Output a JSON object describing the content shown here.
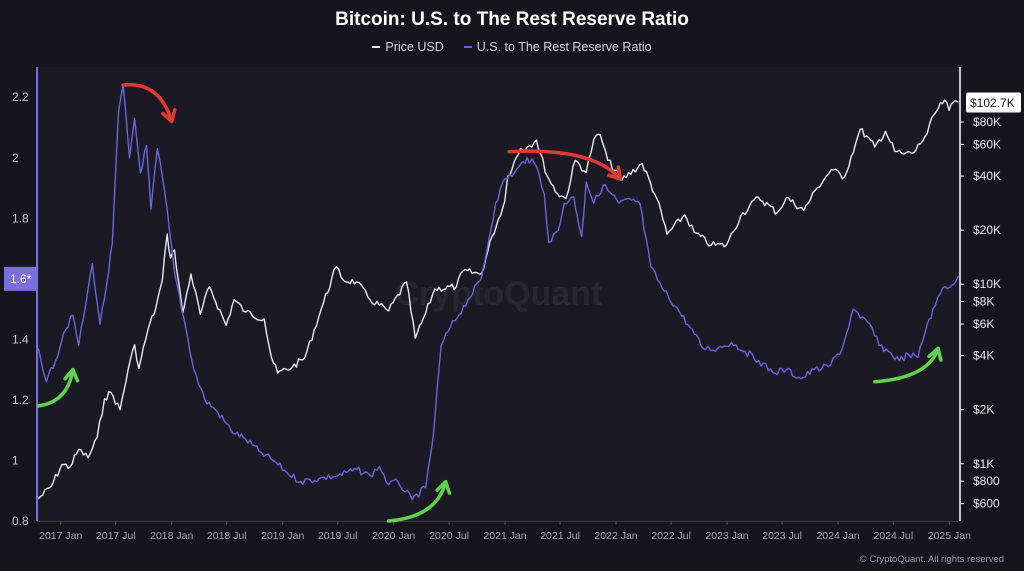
{
  "chart_data": {
    "type": "line",
    "title": "Bitcoin: U.S. to The Rest Reserve Ratio",
    "watermark": "CryptoQuant",
    "copyright": "© CryptoQuant. All rights reserved",
    "x_tick_labels": [
      "2017 Jan",
      "2017 Jul",
      "2018 Jan",
      "2018 Jul",
      "2019 Jan",
      "2019 Jul",
      "2020 Jan",
      "2020 Jul",
      "2021 Jan",
      "2021 Jul",
      "2022 Jan",
      "2022 Jul",
      "2023 Jan",
      "2023 Jul",
      "2024 Jan",
      "2024 Jul",
      "2025 Jan"
    ],
    "x_range": [
      "2016-10-15",
      "2025-02-05"
    ],
    "left_axis": {
      "ticks": [
        "0.8",
        "1",
        "1.2",
        "1.4",
        "1.6",
        "1.8",
        "2",
        "2.2"
      ],
      "range": [
        0.8,
        2.28
      ],
      "marker_label": "1.6*",
      "marker_value": 1.6,
      "color": "#7b6fe0"
    },
    "right_axis": {
      "scale": "log",
      "ticks": [
        {
          "label": "$600",
          "value": 600
        },
        {
          "label": "$800",
          "value": 800
        },
        {
          "label": "$1K",
          "value": 1000
        },
        {
          "label": "$2K",
          "value": 2000
        },
        {
          "label": "$4K",
          "value": 4000
        },
        {
          "label": "$6K",
          "value": 6000
        },
        {
          "label": "$8K",
          "value": 8000
        },
        {
          "label": "$10K",
          "value": 10000
        },
        {
          "label": "$20K",
          "value": 20000
        },
        {
          "label": "$40K",
          "value": 40000
        },
        {
          "label": "$60K",
          "value": 60000
        },
        {
          "label": "$80K",
          "value": 80000
        }
      ],
      "range": [
        480,
        150000
      ],
      "last_price_label": "$102.7K",
      "last_price_value": 102700,
      "color": "#ffffff"
    },
    "series": [
      {
        "name": "Price USD",
        "axis": "right",
        "color": "#e9e9ee",
        "points": [
          [
            "2016-10-20",
            640
          ],
          [
            "2016-12-01",
            750
          ],
          [
            "2017-01-05",
            990
          ],
          [
            "2017-02-01",
            960
          ],
          [
            "2017-03-01",
            1200
          ],
          [
            "2017-04-01",
            1080
          ],
          [
            "2017-05-01",
            1400
          ],
          [
            "2017-05-25",
            2300
          ],
          [
            "2017-06-15",
            2500
          ],
          [
            "2017-07-15",
            2000
          ],
          [
            "2017-08-10",
            3300
          ],
          [
            "2017-09-01",
            4600
          ],
          [
            "2017-09-15",
            3400
          ],
          [
            "2017-10-15",
            5600
          ],
          [
            "2017-11-10",
            7400
          ],
          [
            "2017-12-01",
            10500
          ],
          [
            "2017-12-17",
            19000
          ],
          [
            "2017-12-28",
            14000
          ],
          [
            "2018-01-10",
            15500
          ],
          [
            "2018-02-06",
            6900
          ],
          [
            "2018-03-05",
            11400
          ],
          [
            "2018-04-05",
            6800
          ],
          [
            "2018-05-05",
            9700
          ],
          [
            "2018-06-29",
            5900
          ],
          [
            "2018-07-25",
            8200
          ],
          [
            "2018-09-01",
            7000
          ],
          [
            "2018-11-01",
            6400
          ],
          [
            "2018-11-25",
            3900
          ],
          [
            "2018-12-15",
            3200
          ],
          [
            "2019-02-01",
            3450
          ],
          [
            "2019-03-15",
            3900
          ],
          [
            "2019-05-15",
            7900
          ],
          [
            "2019-06-26",
            12500
          ],
          [
            "2019-07-20",
            10500
          ],
          [
            "2019-09-01",
            10300
          ],
          [
            "2019-10-15",
            8200
          ],
          [
            "2019-12-15",
            7100
          ],
          [
            "2020-02-12",
            10300
          ],
          [
            "2020-03-12",
            5000
          ],
          [
            "2020-04-15",
            6900
          ],
          [
            "2020-05-15",
            9400
          ],
          [
            "2020-07-25",
            9700
          ],
          [
            "2020-08-15",
            11800
          ],
          [
            "2020-10-15",
            11400
          ],
          [
            "2020-11-20",
            18500
          ],
          [
            "2020-12-31",
            29000
          ],
          [
            "2021-01-10",
            40000
          ],
          [
            "2021-02-21",
            57000
          ],
          [
            "2021-03-15",
            58000
          ],
          [
            "2021-04-14",
            63500
          ],
          [
            "2021-05-20",
            40000
          ],
          [
            "2021-06-22",
            32000
          ],
          [
            "2021-07-20",
            30000
          ],
          [
            "2021-08-20",
            49000
          ],
          [
            "2021-09-25",
            42000
          ],
          [
            "2021-10-20",
            64000
          ],
          [
            "2021-11-10",
            68000
          ],
          [
            "2021-12-05",
            49000
          ],
          [
            "2022-01-20",
            38000
          ],
          [
            "2022-03-28",
            47000
          ],
          [
            "2022-05-15",
            30000
          ],
          [
            "2022-06-18",
            19000
          ],
          [
            "2022-08-15",
            24300
          ],
          [
            "2022-09-15",
            19500
          ],
          [
            "2022-11-10",
            16500
          ],
          [
            "2022-12-30",
            16500
          ],
          [
            "2023-02-15",
            24000
          ],
          [
            "2023-04-14",
            30500
          ],
          [
            "2023-06-15",
            25000
          ],
          [
            "2023-07-15",
            30300
          ],
          [
            "2023-09-10",
            25800
          ],
          [
            "2023-10-25",
            34500
          ],
          [
            "2023-12-10",
            43500
          ],
          [
            "2024-01-22",
            39500
          ],
          [
            "2024-02-28",
            61000
          ],
          [
            "2024-03-14",
            73000
          ],
          [
            "2024-05-01",
            58000
          ],
          [
            "2024-06-05",
            71000
          ],
          [
            "2024-07-05",
            55000
          ],
          [
            "2024-08-05",
            53000
          ],
          [
            "2024-09-06",
            54000
          ],
          [
            "2024-10-20",
            69000
          ],
          [
            "2024-11-12",
            88000
          ],
          [
            "2024-12-16",
            106000
          ],
          [
            "2024-12-31",
            93000
          ],
          [
            "2025-01-20",
            105000
          ],
          [
            "2025-01-31",
            102700
          ]
        ]
      },
      {
        "name": "U.S. to The Rest Reserve Ratio",
        "axis": "left",
        "color": "#6f63dc",
        "points": [
          [
            "2016-10-20",
            1.37
          ],
          [
            "2016-11-15",
            1.26
          ],
          [
            "2016-12-15",
            1.33
          ],
          [
            "2017-01-10",
            1.42
          ],
          [
            "2017-02-10",
            1.48
          ],
          [
            "2017-03-01",
            1.38
          ],
          [
            "2017-03-25",
            1.52
          ],
          [
            "2017-04-15",
            1.65
          ],
          [
            "2017-05-10",
            1.45
          ],
          [
            "2017-06-01",
            1.58
          ],
          [
            "2017-06-20",
            1.72
          ],
          [
            "2017-07-10",
            2.15
          ],
          [
            "2017-07-25",
            2.24
          ],
          [
            "2017-08-15",
            2.0
          ],
          [
            "2017-09-01",
            2.13
          ],
          [
            "2017-09-20",
            1.95
          ],
          [
            "2017-10-10",
            2.04
          ],
          [
            "2017-10-25",
            1.83
          ],
          [
            "2017-11-15",
            2.03
          ],
          [
            "2017-12-10",
            1.88
          ],
          [
            "2018-01-10",
            1.62
          ],
          [
            "2018-02-10",
            1.47
          ],
          [
            "2018-03-15",
            1.3
          ],
          [
            "2018-04-20",
            1.2
          ],
          [
            "2018-06-01",
            1.16
          ],
          [
            "2018-07-15",
            1.1
          ],
          [
            "2018-09-01",
            1.07
          ],
          [
            "2018-10-15",
            1.03
          ],
          [
            "2018-12-01",
            1.0
          ],
          [
            "2019-01-15",
            0.96
          ],
          [
            "2019-03-01",
            0.93
          ],
          [
            "2019-05-01",
            0.94
          ],
          [
            "2019-07-01",
            0.95
          ],
          [
            "2019-09-01",
            0.97
          ],
          [
            "2019-10-15",
            0.95
          ],
          [
            "2019-11-15",
            0.98
          ],
          [
            "2019-12-15",
            0.92
          ],
          [
            "2020-01-15",
            0.93
          ],
          [
            "2020-03-01",
            0.87
          ],
          [
            "2020-04-15",
            0.91
          ],
          [
            "2020-05-10",
            1.08
          ],
          [
            "2020-06-05",
            1.38
          ],
          [
            "2020-07-05",
            1.44
          ],
          [
            "2020-09-01",
            1.53
          ],
          [
            "2020-10-15",
            1.6
          ],
          [
            "2020-12-01",
            1.85
          ],
          [
            "2020-12-31",
            1.93
          ],
          [
            "2021-02-01",
            1.95
          ],
          [
            "2021-03-15",
            2.0
          ],
          [
            "2021-04-15",
            1.97
          ],
          [
            "2021-05-10",
            1.88
          ],
          [
            "2021-05-25",
            1.72
          ],
          [
            "2021-06-25",
            1.76
          ],
          [
            "2021-07-15",
            1.85
          ],
          [
            "2021-08-15",
            1.87
          ],
          [
            "2021-09-10",
            1.74
          ],
          [
            "2021-09-25",
            1.92
          ],
          [
            "2021-10-20",
            1.85
          ],
          [
            "2021-11-20",
            1.91
          ],
          [
            "2022-01-10",
            1.85
          ],
          [
            "2022-02-20",
            1.86
          ],
          [
            "2022-03-20",
            1.85
          ],
          [
            "2022-04-25",
            1.64
          ],
          [
            "2022-06-01",
            1.57
          ],
          [
            "2022-07-15",
            1.51
          ],
          [
            "2022-09-01",
            1.44
          ],
          [
            "2022-10-15",
            1.37
          ],
          [
            "2022-12-01",
            1.37
          ],
          [
            "2023-01-15",
            1.39
          ],
          [
            "2023-03-01",
            1.36
          ],
          [
            "2023-04-15",
            1.33
          ],
          [
            "2023-06-01",
            1.29
          ],
          [
            "2023-07-15",
            1.3
          ],
          [
            "2023-09-01",
            1.27
          ],
          [
            "2023-10-15",
            1.3
          ],
          [
            "2023-12-01",
            1.31
          ],
          [
            "2024-01-15",
            1.37
          ],
          [
            "2024-02-20",
            1.5
          ],
          [
            "2024-03-14",
            1.47
          ],
          [
            "2024-04-15",
            1.45
          ],
          [
            "2024-05-15",
            1.38
          ],
          [
            "2024-06-15",
            1.36
          ],
          [
            "2024-07-20",
            1.33
          ],
          [
            "2024-08-20",
            1.35
          ],
          [
            "2024-09-20",
            1.34
          ],
          [
            "2024-10-20",
            1.45
          ],
          [
            "2024-11-15",
            1.51
          ],
          [
            "2024-12-10",
            1.57
          ],
          [
            "2025-01-10",
            1.58
          ],
          [
            "2025-01-31",
            1.61
          ]
        ]
      }
    ],
    "annotations": [
      {
        "kind": "arrow",
        "color": "#5fd34e",
        "date_from": "2016-10-20",
        "val_from": 1.18,
        "date_to": "2017-02-10",
        "val_to": 1.3
      },
      {
        "kind": "arrow",
        "color": "#e03a33",
        "date_from": "2017-07-25",
        "val_from": 2.24,
        "date_to": "2018-01-01",
        "val_to": 2.12
      },
      {
        "kind": "arrow",
        "color": "#5fd34e",
        "date_from": "2019-12-15",
        "val_from": 0.8,
        "date_to": "2020-06-20",
        "val_to": 0.93
      },
      {
        "kind": "arrow",
        "color": "#e03a33",
        "date_from": "2021-01-15",
        "val_from": 2.02,
        "date_to": "2022-01-15",
        "val_to": 1.93
      },
      {
        "kind": "arrow",
        "color": "#5fd34e",
        "date_from": "2024-05-01",
        "val_from": 1.26,
        "date_to": "2024-11-25",
        "val_to": 1.37
      }
    ]
  }
}
